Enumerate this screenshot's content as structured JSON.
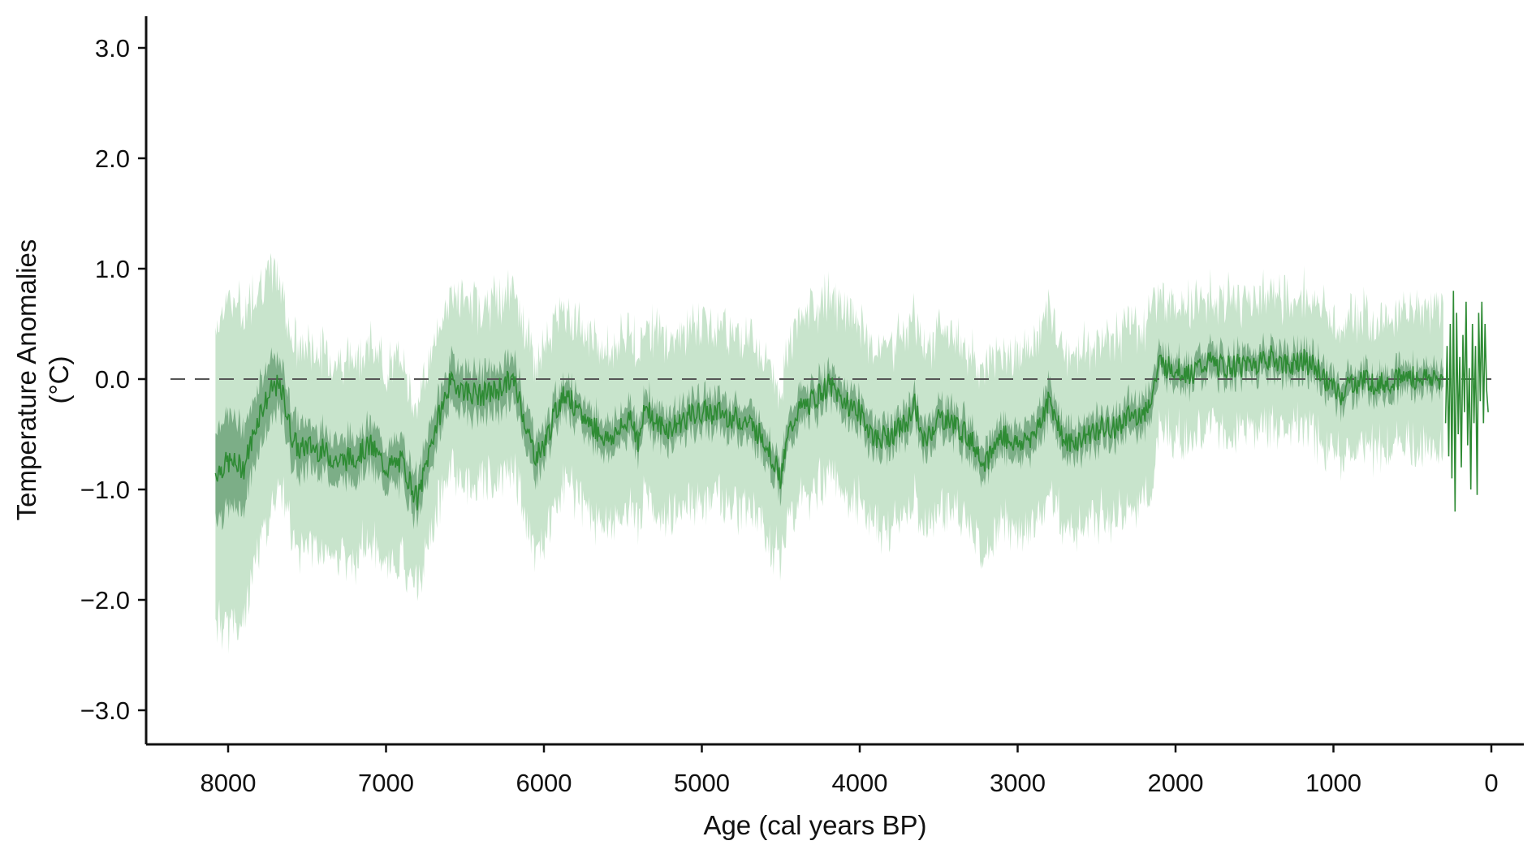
{
  "chart_data": {
    "type": "area",
    "xlabel": "Age (cal years BP)",
    "ylabel_lines": [
      "Temperature Anomalies",
      "(°C)"
    ],
    "xlim": [
      8500,
      0
    ],
    "ylim": [
      -3.3,
      3.3
    ],
    "x_reversed": true,
    "x_ticks": [
      8000,
      7000,
      6000,
      5000,
      4000,
      3000,
      2000,
      1000,
      0
    ],
    "x_tick_labels": [
      "8000",
      "7000",
      "6000",
      "5000",
      "4000",
      "3000",
      "2000",
      "1000",
      "0"
    ],
    "y_ticks": [
      3,
      2,
      1,
      0,
      -1,
      -2,
      -3
    ],
    "y_tick_labels": [
      "3.0",
      "2.0",
      "1.0",
      "0.0",
      "−1.0",
      "−2.0",
      "−3.0"
    ],
    "reference_line": {
      "y": 0,
      "style": "dashed"
    },
    "grid": false,
    "legend": "none",
    "colors": {
      "line": "#2e8b34",
      "inner_band": "#6fa57a",
      "outer_band": "#c8e4cc",
      "reference": "#555555",
      "axis": "#111111"
    },
    "series": [
      {
        "x": [
          8080,
          8000,
          7900,
          7800,
          7700,
          7650,
          7600,
          7550,
          7500,
          7400,
          7300,
          7200,
          7100,
          7000,
          6900,
          6800,
          6700,
          6600,
          6550,
          6500,
          6400,
          6300,
          6200,
          6150,
          6100,
          6050,
          6000,
          5900,
          5850,
          5800,
          5700,
          5600,
          5500,
          5450,
          5400,
          5350,
          5300,
          5200,
          5100,
          5000,
          4900,
          4800,
          4700,
          4600,
          4500,
          4450,
          4400,
          4300,
          4200,
          4100,
          4000,
          3900,
          3800,
          3700,
          3650,
          3600,
          3500,
          3400,
          3300,
          3200,
          3100,
          3000,
          2900,
          2800,
          2750,
          2700,
          2600,
          2500,
          2400,
          2300,
          2200,
          2150,
          2100,
          2050,
          2000,
          1900,
          1800,
          1700,
          1600,
          1500,
          1400,
          1300,
          1200,
          1100,
          1000,
          950,
          900,
          800,
          700,
          600,
          500,
          400,
          300
        ],
        "y": [
          -0.85,
          -0.75,
          -0.8,
          -0.3,
          -0.05,
          -0.15,
          -0.5,
          -0.65,
          -0.6,
          -0.65,
          -0.75,
          -0.7,
          -0.6,
          -0.8,
          -0.75,
          -1.1,
          -0.5,
          -0.05,
          -0.05,
          -0.1,
          -0.15,
          -0.1,
          0.0,
          -0.2,
          -0.5,
          -0.7,
          -0.6,
          -0.2,
          -0.1,
          -0.3,
          -0.4,
          -0.55,
          -0.45,
          -0.3,
          -0.6,
          -0.2,
          -0.4,
          -0.45,
          -0.35,
          -0.3,
          -0.3,
          -0.35,
          -0.4,
          -0.55,
          -0.9,
          -0.5,
          -0.3,
          -0.2,
          -0.05,
          -0.2,
          -0.3,
          -0.55,
          -0.5,
          -0.4,
          -0.2,
          -0.6,
          -0.35,
          -0.4,
          -0.55,
          -0.75,
          -0.5,
          -0.6,
          -0.5,
          -0.2,
          -0.35,
          -0.6,
          -0.55,
          -0.45,
          -0.45,
          -0.35,
          -0.3,
          -0.15,
          0.15,
          0.1,
          0.1,
          0.05,
          0.15,
          0.1,
          0.12,
          0.15,
          0.2,
          0.12,
          0.18,
          0.08,
          -0.1,
          -0.15,
          -0.05,
          0.0,
          -0.05,
          0.0,
          0.02,
          0.0,
          0.0
        ],
        "inner_half_width": [
          0.4,
          0.45,
          0.35,
          0.3,
          0.25,
          0.25,
          0.25,
          0.25,
          0.2,
          0.2,
          0.2,
          0.2,
          0.2,
          0.2,
          0.2,
          0.2,
          0.2,
          0.2,
          0.2,
          0.2,
          0.2,
          0.2,
          0.2,
          0.2,
          0.2,
          0.2,
          0.15,
          0.15,
          0.15,
          0.15,
          0.15,
          0.15,
          0.15,
          0.15,
          0.15,
          0.15,
          0.15,
          0.15,
          0.15,
          0.15,
          0.15,
          0.15,
          0.15,
          0.15,
          0.15,
          0.15,
          0.15,
          0.15,
          0.15,
          0.15,
          0.15,
          0.15,
          0.15,
          0.15,
          0.15,
          0.15,
          0.15,
          0.15,
          0.15,
          0.15,
          0.15,
          0.15,
          0.15,
          0.15,
          0.15,
          0.15,
          0.15,
          0.15,
          0.15,
          0.15,
          0.15,
          0.15,
          0.12,
          0.12,
          0.12,
          0.12,
          0.12,
          0.12,
          0.12,
          0.12,
          0.12,
          0.12,
          0.12,
          0.12,
          0.12,
          0.12,
          0.12,
          0.12,
          0.12,
          0.12,
          0.12,
          0.12,
          0.12
        ],
        "outer_half_width": [
          1.3,
          1.5,
          1.4,
          1.2,
          1.0,
          0.9,
          0.9,
          0.9,
          0.9,
          0.9,
          0.9,
          0.9,
          0.9,
          0.9,
          0.9,
          0.85,
          0.8,
          0.8,
          0.8,
          0.8,
          0.8,
          0.8,
          0.8,
          0.8,
          0.85,
          0.85,
          0.85,
          0.8,
          0.8,
          0.8,
          0.8,
          0.8,
          0.8,
          0.8,
          0.8,
          0.8,
          0.8,
          0.8,
          0.8,
          0.8,
          0.8,
          0.8,
          0.8,
          0.8,
          0.8,
          0.8,
          0.8,
          0.8,
          0.8,
          0.8,
          0.8,
          0.8,
          0.8,
          0.8,
          0.8,
          0.8,
          0.8,
          0.8,
          0.8,
          0.8,
          0.8,
          0.8,
          0.8,
          0.8,
          0.8,
          0.8,
          0.8,
          0.8,
          0.8,
          0.8,
          0.8,
          0.8,
          0.6,
          0.6,
          0.6,
          0.6,
          0.6,
          0.6,
          0.6,
          0.6,
          0.6,
          0.6,
          0.6,
          0.6,
          0.6,
          0.6,
          0.6,
          0.6,
          0.6,
          0.6,
          0.6,
          0.6,
          0.6
        ]
      },
      {
        "x": [
          290,
          280,
          270,
          260,
          250,
          240,
          230,
          220,
          210,
          200,
          190,
          180,
          170,
          160,
          150,
          140,
          130,
          120,
          110,
          100,
          90,
          80,
          70,
          60,
          50,
          40,
          30,
          20
        ],
        "y": [
          -0.4,
          0.3,
          -0.7,
          0.5,
          -0.9,
          0.8,
          -1.2,
          0.6,
          -0.5,
          0.2,
          -0.8,
          0.4,
          -0.3,
          0.7,
          -0.6,
          0.1,
          -1.0,
          0.5,
          -0.4,
          0.3,
          -1.05,
          0.6,
          -0.2,
          0.7,
          -0.4,
          0.5,
          -0.1,
          -0.3
        ]
      }
    ]
  }
}
